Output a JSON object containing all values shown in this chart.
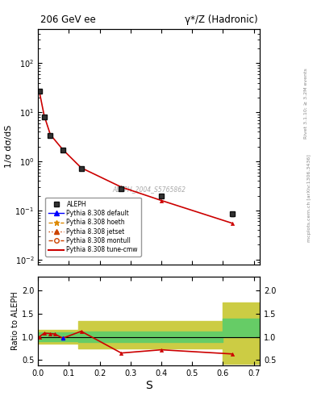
{
  "title_left": "206 GeV ee",
  "title_right": "γ*/Z (Hadronic)",
  "ylabel_main": "1/σ dσ/dS",
  "ylabel_ratio": "Ratio to ALEPH",
  "xlabel": "S",
  "watermark": "ALEPH_2004_S5765862",
  "right_label_top": "Rivet 3.1.10; ≥ 3.2M events",
  "right_label_mid": "mcplots.cern.ch [arXiv:1306.3436]",
  "data_x": [
    0.004,
    0.02,
    0.04,
    0.08,
    0.14,
    0.27,
    0.4,
    0.63
  ],
  "data_y": [
    27.0,
    8.0,
    3.4,
    1.7,
    0.72,
    0.28,
    0.2,
    0.085
  ],
  "data_yerr": [
    1.5,
    0.5,
    0.25,
    0.12,
    0.05,
    0.02,
    0.015,
    0.008
  ],
  "mc_x": [
    0.004,
    0.02,
    0.04,
    0.08,
    0.14,
    0.27,
    0.4,
    0.63
  ],
  "mc_y": [
    27.0,
    8.5,
    3.5,
    1.75,
    0.74,
    0.3,
    0.16,
    0.055
  ],
  "ratio_x": [
    0.004,
    0.02,
    0.04,
    0.055,
    0.08,
    0.14,
    0.27,
    0.4,
    0.63
  ],
  "ratio_y": [
    1.0,
    1.08,
    1.07,
    1.06,
    0.97,
    1.12,
    0.65,
    0.72,
    0.63
  ],
  "band_edges": [
    0.0,
    0.065,
    0.13,
    0.4,
    0.6,
    0.75
  ],
  "band_green_lo": [
    0.9,
    0.9,
    0.88,
    0.88,
    1.0,
    1.0
  ],
  "band_green_hi": [
    1.1,
    1.1,
    1.12,
    1.12,
    1.4,
    1.4
  ],
  "band_yellow_lo": [
    0.85,
    0.85,
    0.75,
    0.75,
    0.42,
    0.42
  ],
  "band_yellow_hi": [
    1.15,
    1.15,
    1.35,
    1.35,
    1.75,
    1.75
  ],
  "color_data": "#000000",
  "color_mc_line": "#cc0000",
  "color_band_green": "#66cc66",
  "color_band_yellow": "#cccc44",
  "ylim_main": [
    0.008,
    500
  ],
  "ylim_ratio": [
    0.38,
    2.3
  ],
  "xlim": [
    0.0,
    0.72
  ],
  "yticks_ratio": [
    0.5,
    1.0,
    1.5,
    2.0
  ]
}
